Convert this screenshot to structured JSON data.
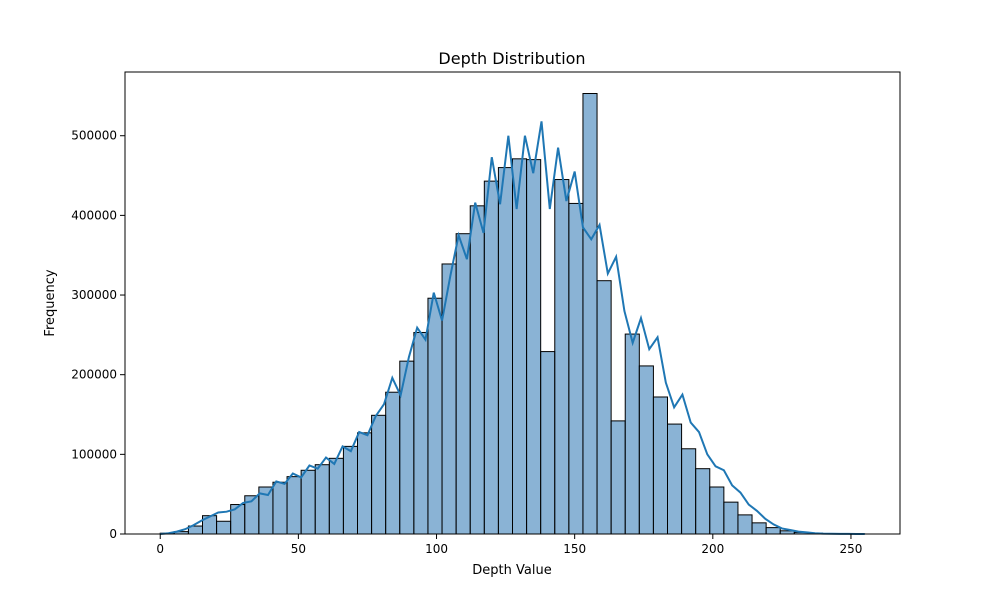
{
  "chart_data": {
    "type": "bar",
    "title": "Depth Distribution",
    "xlabel": "Depth Value",
    "ylabel": "Frequency",
    "xlim": [
      -12.75,
      267.75
    ],
    "ylim": [
      0,
      580000
    ],
    "xticks": [
      0,
      50,
      100,
      150,
      200,
      250
    ],
    "yticks": [
      0,
      100000,
      200000,
      300000,
      400000,
      500000
    ],
    "xtick_labels": [
      "0",
      "50",
      "100",
      "150",
      "200",
      "250"
    ],
    "ytick_labels": [
      "0",
      "100000",
      "200000",
      "300000",
      "400000",
      "500000"
    ],
    "grid": false,
    "bin_edges": [
      0,
      5.1,
      10.2,
      15.3,
      20.4,
      25.5,
      30.6,
      35.7,
      40.8,
      45.9,
      51.0,
      56.1,
      61.2,
      66.3,
      71.4,
      76.5,
      81.6,
      86.7,
      91.8,
      96.9,
      102.0,
      107.1,
      112.2,
      117.3,
      122.4,
      127.5,
      132.6,
      137.7,
      142.8,
      147.9,
      153.0,
      158.1,
      163.2,
      168.3,
      173.4,
      178.5,
      183.6,
      188.7,
      193.8,
      198.9,
      204.0,
      209.1,
      214.2,
      219.3,
      224.4,
      229.5,
      234.6,
      239.7,
      244.8,
      249.9,
      255.0
    ],
    "values": [
      1000,
      3000,
      10000,
      23000,
      16000,
      37000,
      48000,
      59000,
      65000,
      72000,
      80000,
      87000,
      95000,
      110000,
      127000,
      149000,
      178000,
      217000,
      253000,
      296000,
      339000,
      377000,
      412000,
      443000,
      460000,
      471000,
      470000,
      229000,
      445000,
      415000,
      553000,
      318000,
      142000,
      251000,
      211000,
      172000,
      138000,
      107000,
      82000,
      59000,
      40000,
      24000,
      14000,
      8000,
      4000,
      2000,
      1000,
      500,
      200,
      100
    ],
    "kde": {
      "x": [
        0,
        3,
        6,
        9,
        12,
        15,
        18,
        21,
        24,
        27,
        30,
        33,
        36,
        39,
        42,
        45,
        48,
        51,
        54,
        57,
        60,
        63,
        66,
        69,
        72,
        75,
        78,
        81,
        84,
        87,
        90,
        93,
        96,
        99,
        102,
        105,
        108,
        111,
        114,
        117,
        120,
        123,
        126,
        129,
        132,
        135,
        138,
        141,
        144,
        147,
        150,
        153,
        156,
        159,
        162,
        165,
        168,
        171,
        174,
        177,
        180,
        183,
        186,
        189,
        192,
        195,
        198,
        201,
        204,
        207,
        210,
        213,
        216,
        219,
        222,
        225,
        228,
        231,
        234,
        237,
        240,
        243,
        246,
        249,
        252,
        255
      ],
      "y": [
        0,
        1000,
        3000,
        6000,
        11000,
        17000,
        22000,
        27000,
        28000,
        31000,
        39000,
        41000,
        51000,
        49000,
        66000,
        63000,
        76000,
        71000,
        86000,
        82000,
        96000,
        88000,
        110000,
        104000,
        128000,
        124000,
        148000,
        163000,
        196000,
        174000,
        222000,
        259000,
        244000,
        303000,
        268000,
        324000,
        375000,
        345000,
        416000,
        378000,
        473000,
        414000,
        500000,
        408000,
        500000,
        453000,
        518000,
        408000,
        485000,
        418000,
        455000,
        385000,
        370000,
        388000,
        327000,
        348000,
        280000,
        240000,
        271000,
        232000,
        247000,
        190000,
        159000,
        175000,
        140000,
        128000,
        100000,
        85000,
        80000,
        61000,
        52000,
        37000,
        29000,
        19000,
        12000,
        7000,
        5000,
        3000,
        2000,
        1000,
        500,
        300,
        200,
        100,
        50,
        0
      ]
    },
    "colors": {
      "bar_fill": "#4c8bbf",
      "bar_edge": "#000000",
      "kde_line": "#1f77b4"
    }
  }
}
